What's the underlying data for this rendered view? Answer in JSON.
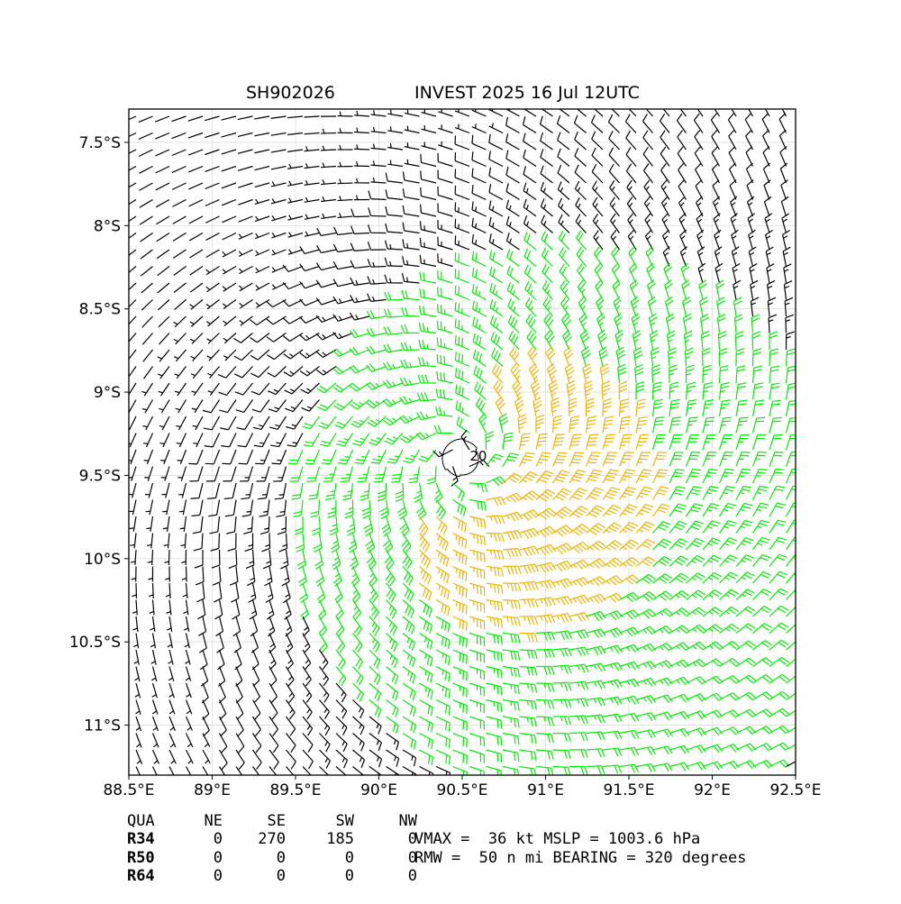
{
  "header": {
    "storm_id": "SH902026",
    "title": "INVEST 2025 16 Jul 12UTC"
  },
  "chart_data": {
    "type": "wind-barb map",
    "xlim_deg_e": [
      88.5,
      92.5
    ],
    "ylim_deg_s": [
      7.3,
      11.3
    ],
    "x_tick_labels": [
      "88.5°E",
      "89°E",
      "89.5°E",
      "90°E",
      "90.5°E",
      "91°E",
      "91.5°E",
      "92°E",
      "92.5°E"
    ],
    "x_tick_values": [
      88.5,
      89.0,
      89.5,
      90.0,
      90.5,
      91.0,
      91.5,
      92.0,
      92.5
    ],
    "y_tick_labels": [
      "7.5°S",
      "8°S",
      "8.5°S",
      "9°S",
      "9.5°S",
      "10°S",
      "10.5°S",
      "11°S"
    ],
    "y_tick_values": [
      7.5,
      8.0,
      8.5,
      9.0,
      9.5,
      10.0,
      10.5,
      11.0
    ],
    "grid": true,
    "center_lon": 90.5,
    "center_lat": 9.4,
    "barb_colors": {
      "below_20kt": "#000000",
      "20_to_34kt": "#00ee00",
      "34_to_50kt": "#f0b400"
    },
    "contour_label": "20",
    "contour_color": "#000000"
  },
  "radii_table": {
    "header": [
      "QUA",
      "NE",
      "SE",
      "SW",
      "NW"
    ],
    "rows": [
      [
        "R34",
        "0",
        "270",
        "185",
        "0"
      ],
      [
        "R50",
        "0",
        "0",
        "0",
        "0"
      ],
      [
        "R64",
        "0",
        "0",
        "0",
        "0"
      ]
    ]
  },
  "stats": {
    "line1": "VMAX =  36 kt MSLP = 1003.6 hPa",
    "line2": "RMW =  50 n mi BEARING = 320 degrees"
  }
}
